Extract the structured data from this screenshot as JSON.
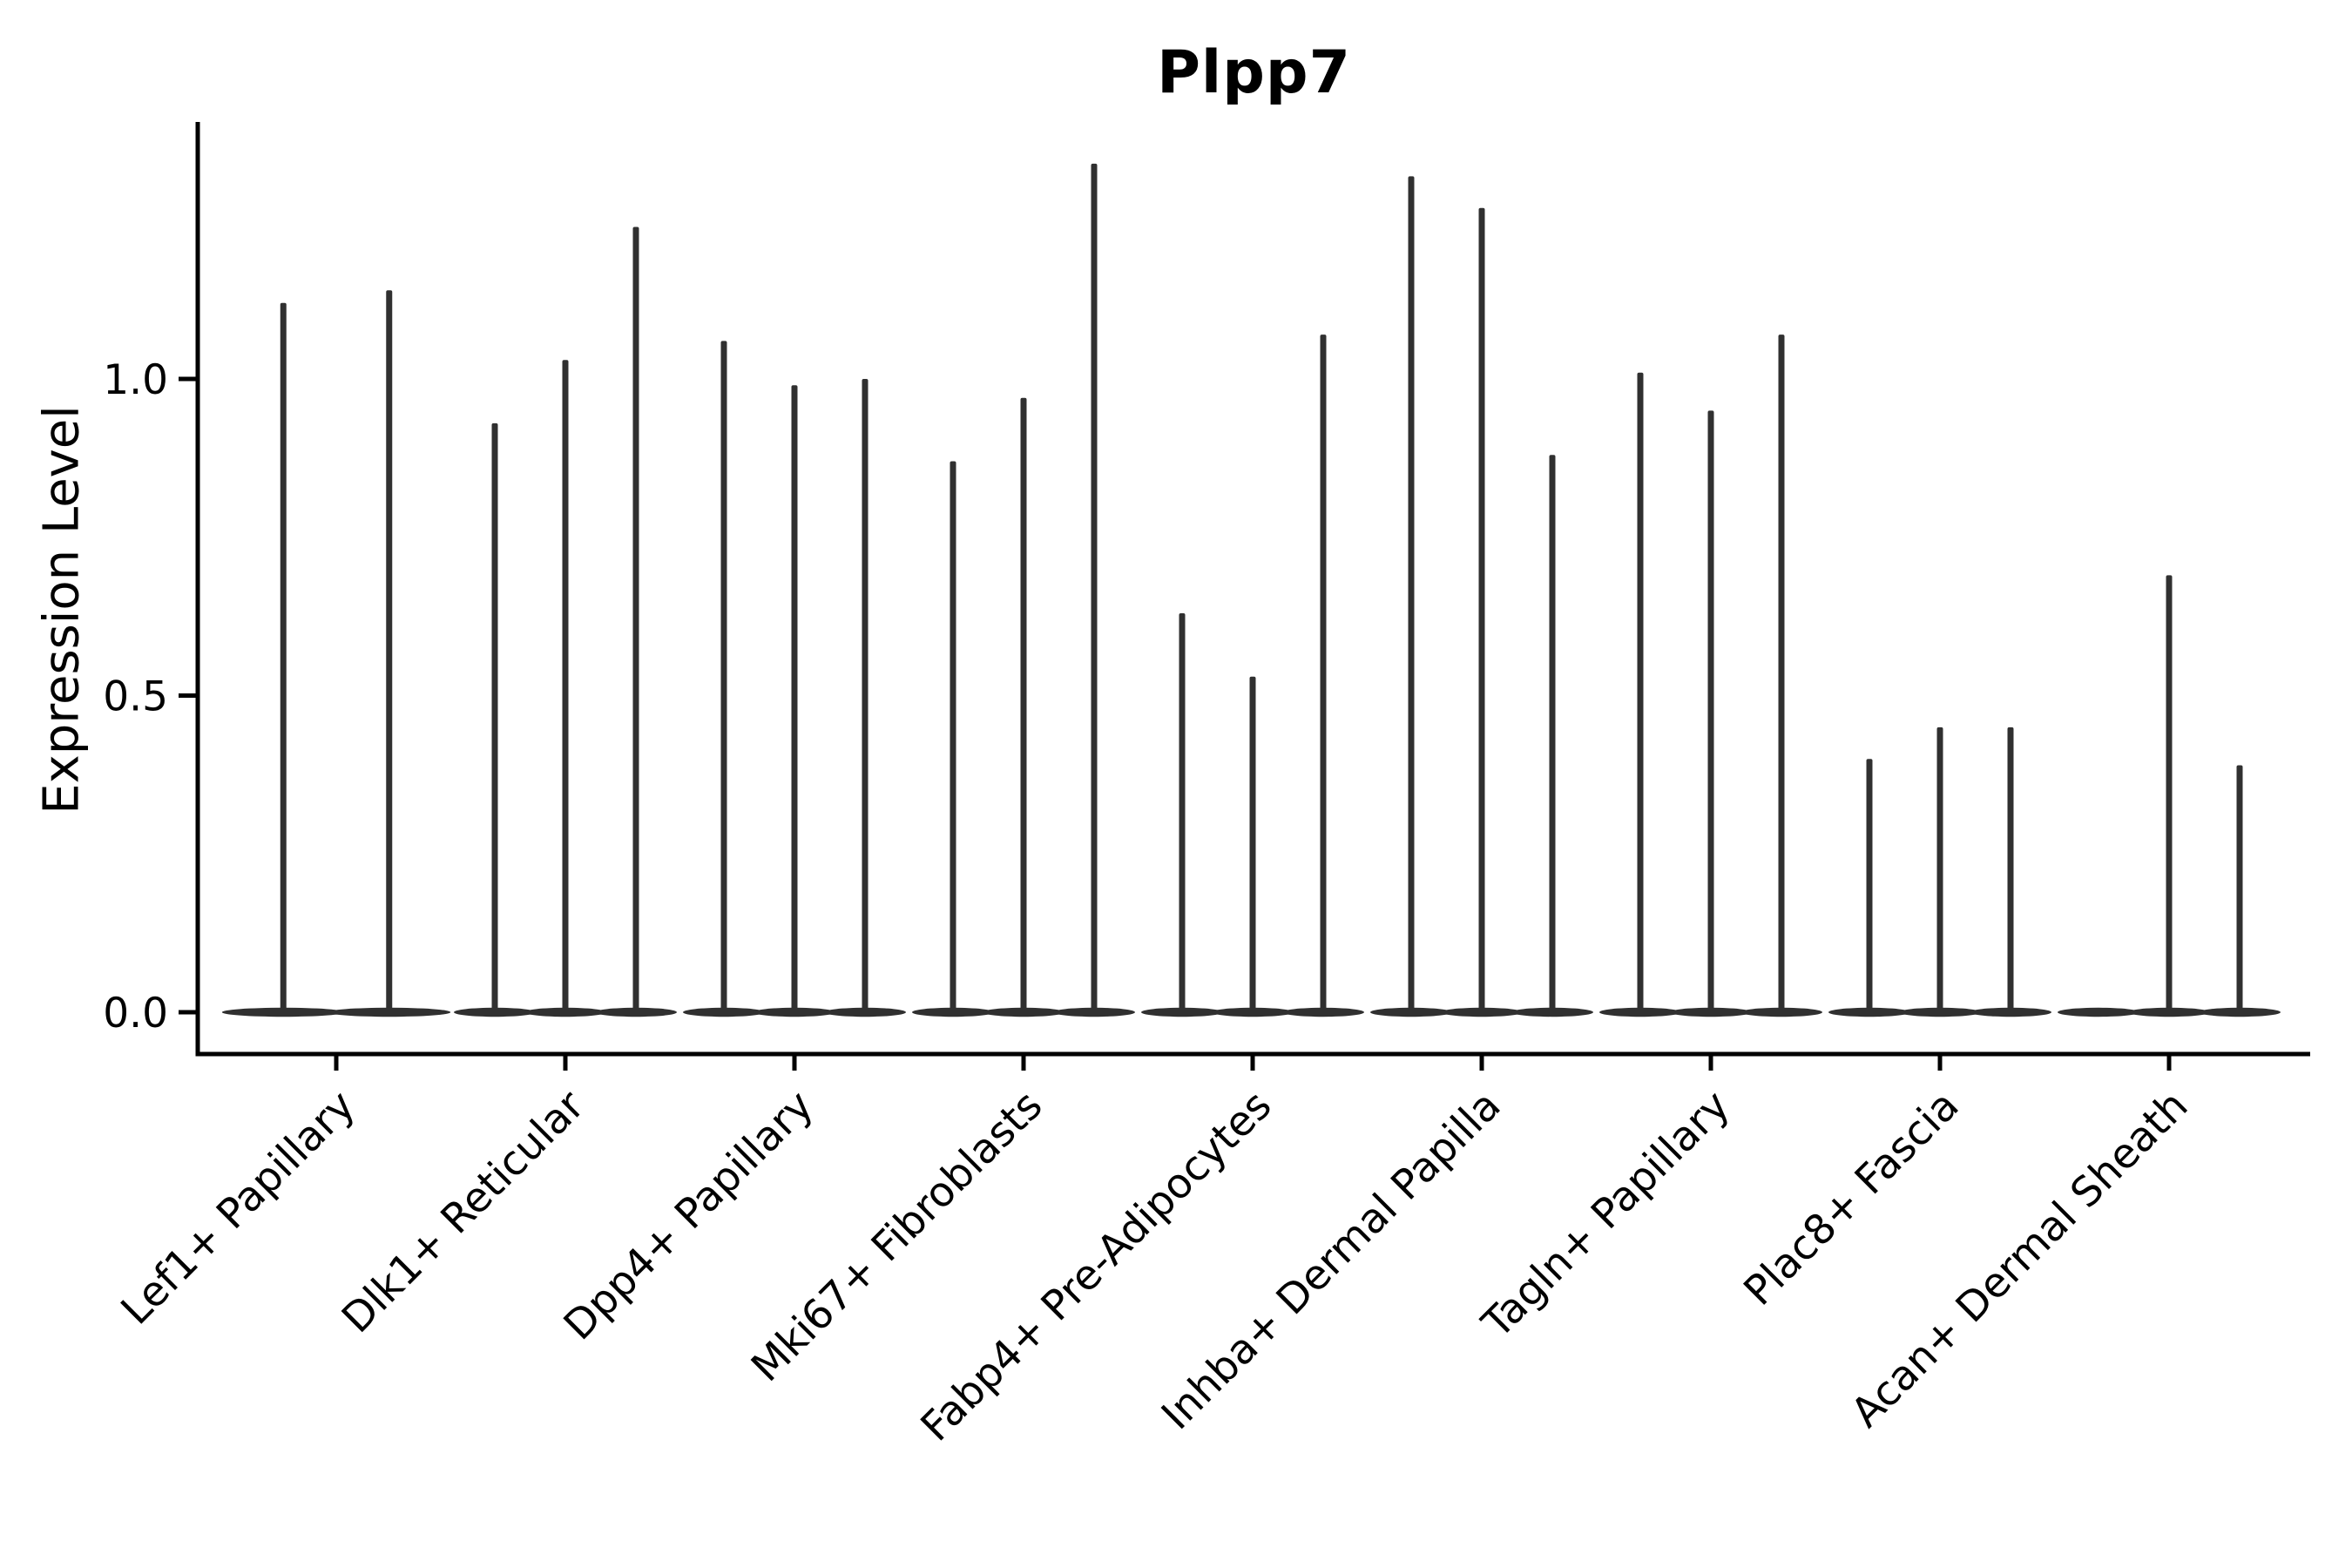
{
  "chart_data": {
    "type": "violin",
    "title": "Plpp7",
    "ylabel": "Expression Level",
    "xlabel": "",
    "ytick_labels": [
      "0.0",
      "0.5",
      "1.0"
    ],
    "ytick_values": [
      0.0,
      0.5,
      1.0
    ],
    "ylim": [
      0.0,
      1.41
    ],
    "grid": false,
    "legend": "none",
    "axis_color": "#000000",
    "ink_color": "#303030",
    "background_color": "#ffffff",
    "violin_shape": "flat-at-zero-with-thin-spike-to-max",
    "groups": [
      {
        "label": "Lef1+ Papillary",
        "violin_max_expression": [
          1.12,
          1.14
        ]
      },
      {
        "label": "Dlk1+ Reticular",
        "violin_max_expression": [
          0.93,
          1.03,
          1.24
        ]
      },
      {
        "label": "Dpp4+ Papillary",
        "violin_max_expression": [
          1.06,
          0.99,
          1.0
        ]
      },
      {
        "label": "Mki67+ Fibroblasts",
        "violin_max_expression": [
          0.87,
          0.97,
          1.34
        ]
      },
      {
        "label": "Fabp4+ Pre-Adipocytes",
        "violin_max_expression": [
          0.63,
          0.53,
          1.07
        ]
      },
      {
        "label": "Inhba+ Dermal Papilla",
        "violin_max_expression": [
          1.32,
          1.27,
          0.88
        ]
      },
      {
        "label": "Tagln+ Papillary",
        "violin_max_expression": [
          1.01,
          0.95,
          1.07
        ]
      },
      {
        "label": "Plac8+ Fascia",
        "violin_max_expression": [
          0.4,
          0.45,
          0.45
        ]
      },
      {
        "label": "Acan+ Dermal Sheath",
        "violin_max_expression": [
          0.0,
          0.69,
          0.39
        ]
      }
    ]
  }
}
